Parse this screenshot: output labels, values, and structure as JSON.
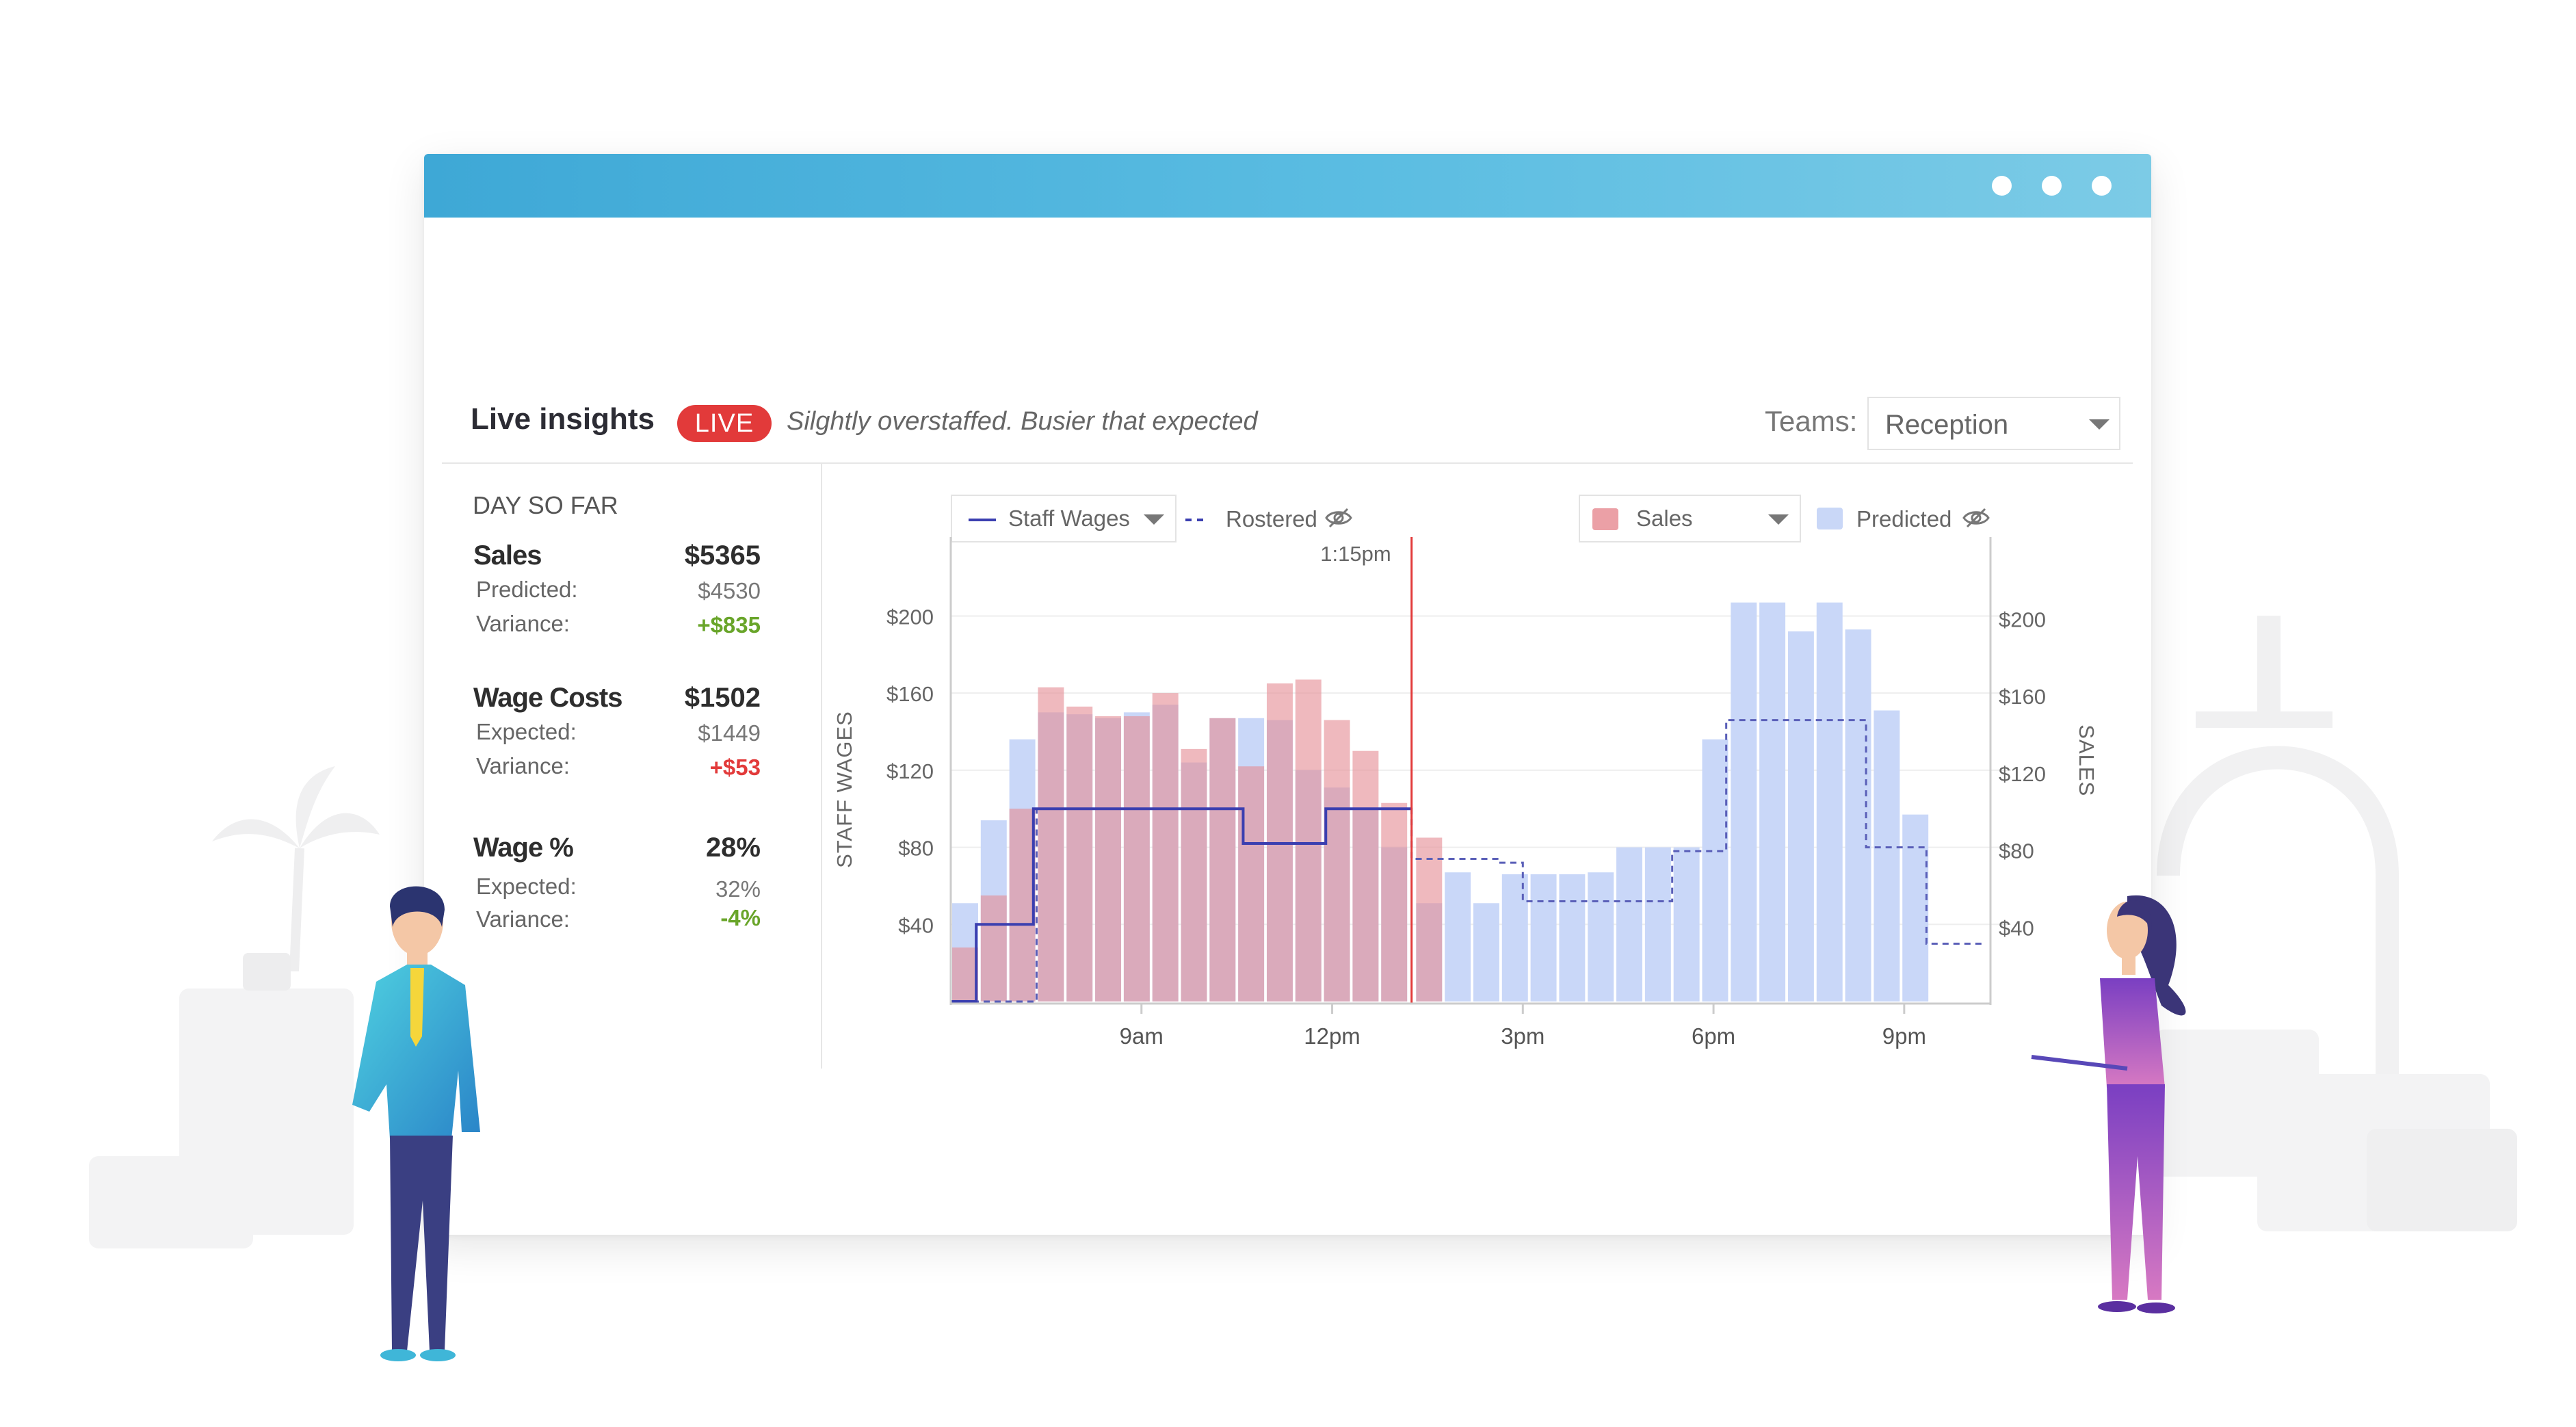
{
  "window": {
    "titlebar_color": "#4bb2dc",
    "controls": [
      "dot",
      "dot",
      "dot"
    ]
  },
  "header": {
    "title": "Live insights",
    "live_badge": "LIVE",
    "message": "Silghtly overstaffed. Busier that expected",
    "teams_label": "Teams:",
    "teams_value": "Reception"
  },
  "summary": {
    "heading": "DAY SO FAR",
    "sales": {
      "label": "Sales",
      "value": "$5365",
      "rows": [
        {
          "label": "Predicted:",
          "value": "$4530"
        },
        {
          "label": "Variance:",
          "value": "+$835"
        }
      ]
    },
    "wages": {
      "label": "Wage Costs",
      "value": "$1502",
      "rows": [
        {
          "label": "Expected:",
          "value": "$1449"
        },
        {
          "label": "Variance:",
          "value": "+$53"
        }
      ]
    },
    "wage_pct": {
      "label": "Wage %",
      "value": "28%",
      "rows": [
        {
          "label": "Expected:",
          "value": "32%"
        },
        {
          "label": "Variance:",
          "value": "-4%"
        }
      ]
    }
  },
  "legend": {
    "staff_wages": "Staff Wages",
    "rostered": "Rostered",
    "sales": "Sales",
    "predicted": "Predicted",
    "staff_wages_color": "#3b3fb0",
    "sales_color": "#eba0a6",
    "predicted_color": "#c9d7f7"
  },
  "chart_data": {
    "type": "bar",
    "now_label": "1:15pm",
    "now_hour": 13.25,
    "ylabel": "STAFF WAGES",
    "y2label": "SALES",
    "left_ticks": [
      "$40",
      "$80",
      "$120",
      "$160",
      "$200"
    ],
    "right_ticks": [
      "$40",
      "$80",
      "$120",
      "$160",
      "$200"
    ],
    "x_ticks": [
      "9am",
      "12pm",
      "3pm",
      "6pm",
      "9pm"
    ],
    "x_tick_hours": [
      9,
      12,
      15,
      18,
      21
    ],
    "ylim": [
      0,
      225
    ],
    "x_range_hours": [
      6,
      22.25
    ],
    "bar_start_hours": [
      6,
      6.45,
      6.9,
      7.35,
      7.8,
      8.25,
      8.7,
      9.15,
      9.6,
      10.05,
      10.5,
      10.95,
      11.4,
      11.85,
      12.3,
      12.75,
      13.3,
      13.75,
      14.2,
      14.65,
      15.1,
      15.55,
      16.0,
      16.45,
      16.9,
      17.35,
      17.8,
      18.25,
      18.7,
      19.15,
      19.6,
      20.05,
      20.5,
      20.95,
      21.4,
      21.85
    ],
    "bar_width_hours": 0.43,
    "series": [
      {
        "name": "Predicted",
        "values": [
          51,
          94,
          136,
          150,
          149,
          147,
          150,
          154,
          124,
          147,
          147,
          146,
          120,
          111,
          100,
          80,
          51,
          67,
          51,
          66,
          66,
          66,
          67,
          80,
          80,
          80,
          136,
          207,
          207,
          192,
          207,
          193,
          151,
          97,
          0,
          0
        ]
      },
      {
        "name": "Sales",
        "values": [
          28,
          55,
          100,
          163,
          153,
          148,
          148,
          160,
          131,
          147,
          122,
          165,
          167,
          146,
          130,
          103,
          85,
          0,
          0,
          0,
          0,
          0,
          0,
          0,
          0,
          0,
          0,
          0,
          0,
          0,
          0,
          0,
          0,
          0,
          0,
          0
        ]
      },
      {
        "name": "Staff Wages",
        "step_hours": [
          6,
          6.4,
          7.3,
          10.6,
          11.9,
          13.25
        ],
        "step_values": [
          0,
          40,
          100,
          82,
          100,
          100
        ]
      },
      {
        "name": "Rostered",
        "step_hours": [
          6,
          7.35,
          10.6,
          11.9,
          13.25,
          14.6,
          15.0,
          17.35,
          18.2,
          20.4,
          21.35,
          22.15,
          22.25
        ],
        "step_values": [
          0,
          100,
          82,
          100,
          74,
          72,
          52,
          78,
          146,
          80,
          30,
          30,
          30
        ]
      }
    ]
  }
}
